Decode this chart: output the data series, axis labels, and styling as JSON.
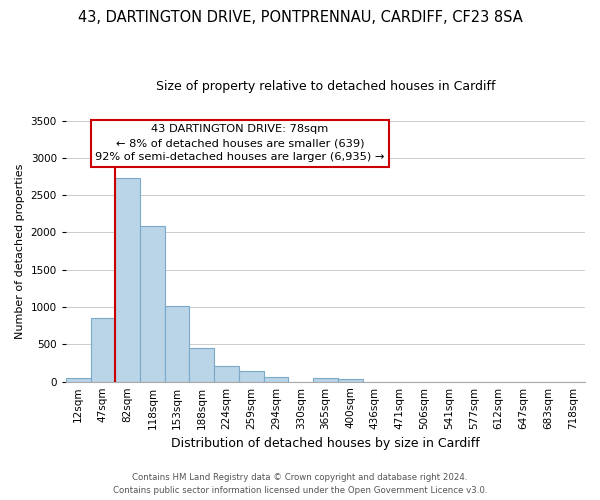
{
  "title_line1": "43, DARTINGTON DRIVE, PONTPRENNAU, CARDIFF, CF23 8SA",
  "title_line2": "Size of property relative to detached houses in Cardiff",
  "xlabel": "Distribution of detached houses by size in Cardiff",
  "ylabel": "Number of detached properties",
  "bar_labels": [
    "12sqm",
    "47sqm",
    "82sqm",
    "118sqm",
    "153sqm",
    "188sqm",
    "224sqm",
    "259sqm",
    "294sqm",
    "330sqm",
    "365sqm",
    "400sqm",
    "436sqm",
    "471sqm",
    "506sqm",
    "541sqm",
    "577sqm",
    "612sqm",
    "647sqm",
    "683sqm",
    "718sqm"
  ],
  "bar_heights": [
    55,
    850,
    2730,
    2080,
    1010,
    455,
    205,
    148,
    65,
    0,
    45,
    30,
    0,
    0,
    0,
    0,
    0,
    0,
    0,
    0,
    0
  ],
  "bar_color": "#bad4e8",
  "bar_edge_color": "#7aaac8",
  "vline_color": "#cc0000",
  "vline_x": 1.5,
  "ylim": [
    0,
    3500
  ],
  "yticks": [
    0,
    500,
    1000,
    1500,
    2000,
    2500,
    3000,
    3500
  ],
  "annotation_title": "43 DARTINGTON DRIVE: 78sqm",
  "annotation_line1": "← 8% of detached houses are smaller (639)",
  "annotation_line2": "92% of semi-detached houses are larger (6,935) →",
  "annotation_box_color": "#ffffff",
  "annotation_box_edge_color": "#cc0000",
  "footer_line1": "Contains HM Land Registry data © Crown copyright and database right 2024.",
  "footer_line2": "Contains public sector information licensed under the Open Government Licence v3.0.",
  "background_color": "#ffffff",
  "grid_color": "#cccccc",
  "title1_fontsize": 10.5,
  "title2_fontsize": 9,
  "ylabel_fontsize": 8,
  "xlabel_fontsize": 9,
  "tick_fontsize": 7.5
}
